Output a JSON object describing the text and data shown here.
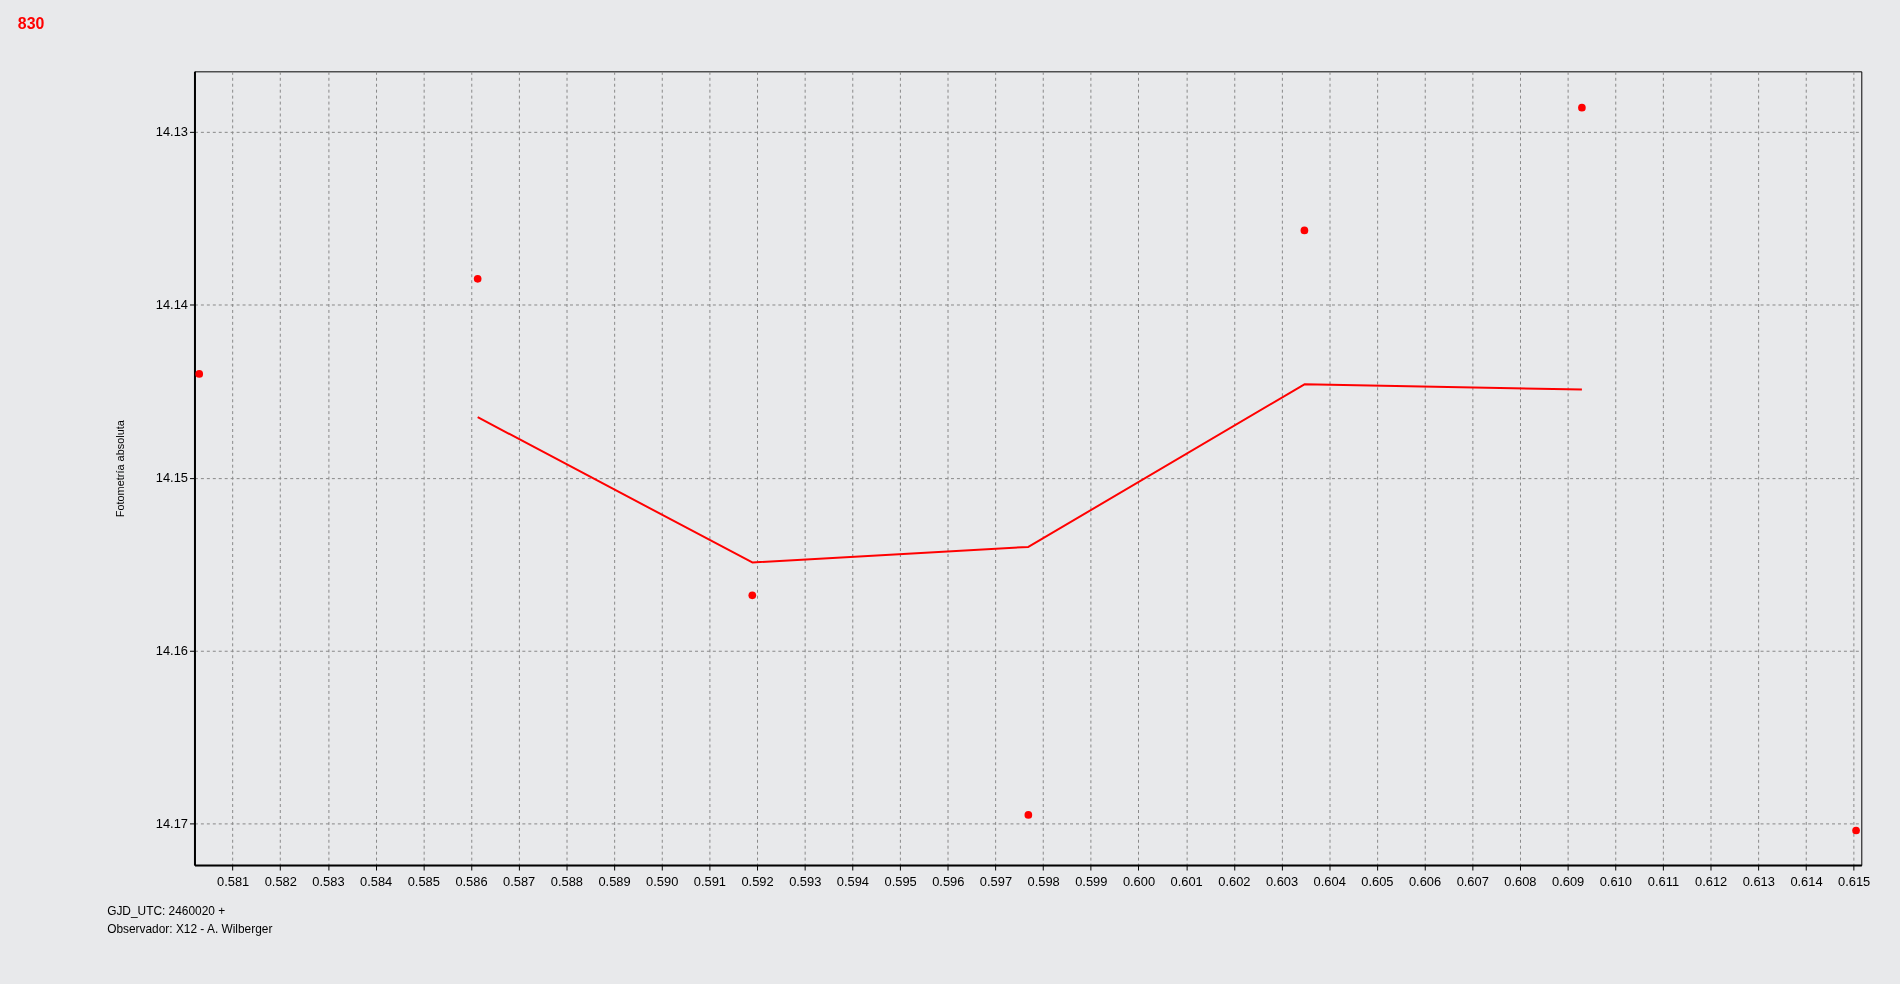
{
  "chart_data": {
    "type": "scatter",
    "title": "830",
    "ylabel": "Fotometría absoluta",
    "annotations": [
      "GJD_UTC: 2460020 +",
      "Observador: X12 - A. Wilberger"
    ],
    "series": [
      {
        "color": "#ff0000",
        "marker": "circle",
        "x": [
          0.5803,
          0.58614,
          0.5919,
          0.59769,
          0.60348,
          0.6093,
          0.61505
        ],
        "values": [
          14.144,
          14.1385,
          14.1568,
          14.1695,
          14.1357,
          14.1286,
          14.1704
        ]
      },
      {
        "type": "line",
        "color": "#ff0000",
        "line_style": "solid",
        "x": [
          0.58614,
          0.5919,
          0.59769,
          0.60348,
          0.6093
        ],
        "values": [
          14.1465,
          14.1549,
          14.154,
          14.1446,
          14.1449
        ]
      }
    ],
    "xlim": [
      0.5802,
      0.61516
    ],
    "ylim": [
      14.1724,
      14.1265
    ],
    "xticks": [
      {
        "value": 0.581,
        "label": "0.581"
      },
      {
        "value": 0.582,
        "label": "0.582"
      },
      {
        "value": 0.583,
        "label": "0.583"
      },
      {
        "value": 0.584,
        "label": "0.584"
      },
      {
        "value": 0.585,
        "label": "0.585"
      },
      {
        "value": 0.586,
        "label": "0.586"
      },
      {
        "value": 0.587,
        "label": "0.587"
      },
      {
        "value": 0.588,
        "label": "0.588"
      },
      {
        "value": 0.589,
        "label": "0.589"
      },
      {
        "value": 0.59,
        "label": "0.590"
      },
      {
        "value": 0.591,
        "label": "0.591"
      },
      {
        "value": 0.592,
        "label": "0.592"
      },
      {
        "value": 0.593,
        "label": "0.593"
      },
      {
        "value": 0.594,
        "label": "0.594"
      },
      {
        "value": 0.595,
        "label": "0.595"
      },
      {
        "value": 0.596,
        "label": "0.596"
      },
      {
        "value": 0.597,
        "label": "0.597"
      },
      {
        "value": 0.598,
        "label": "0.598"
      },
      {
        "value": 0.599,
        "label": "0.599"
      },
      {
        "value": 0.6,
        "label": "0.600"
      },
      {
        "value": 0.601,
        "label": "0.601"
      },
      {
        "value": 0.602,
        "label": "0.602"
      },
      {
        "value": 0.603,
        "label": "0.603"
      },
      {
        "value": 0.604,
        "label": "0.604"
      },
      {
        "value": 0.605,
        "label": "0.605"
      },
      {
        "value": 0.606,
        "label": "0.606"
      },
      {
        "value": 0.607,
        "label": "0.607"
      },
      {
        "value": 0.608,
        "label": "0.608"
      },
      {
        "value": 0.609,
        "label": "0.609"
      },
      {
        "value": 0.61,
        "label": "0.610"
      },
      {
        "value": 0.611,
        "label": "0.611"
      },
      {
        "value": 0.612,
        "label": "0.612"
      },
      {
        "value": 0.613,
        "label": "0.613"
      },
      {
        "value": 0.614,
        "label": "0.614"
      },
      {
        "value": 0.615,
        "label": "0.615"
      }
    ],
    "yticks": [
      14.13,
      14.14,
      14.15,
      14.16,
      14.17
    ],
    "grid": true
  }
}
